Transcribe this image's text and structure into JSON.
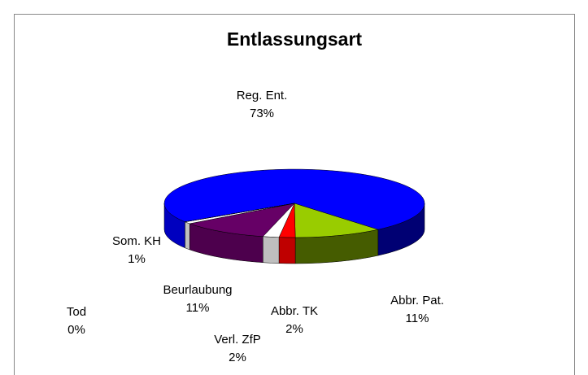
{
  "chart_data": {
    "type": "pie3d",
    "title": "Entlassungsart",
    "categories": [
      "Reg. Ent.",
      "Abbr. Pat.",
      "Abbr. TK",
      "Verl. ZfP",
      "Beurlaubung",
      "Som. KH",
      "Tod"
    ],
    "values": [
      73,
      11,
      2,
      2,
      11,
      1,
      0
    ],
    "value_labels": [
      "73%",
      "11%",
      "2%",
      "2%",
      "11%",
      "1%",
      "0%"
    ],
    "colors": [
      "#0000ff",
      "#99cc00",
      "#ff0000",
      "#ffffff",
      "#660066",
      "#ffffff",
      "#ccffff"
    ]
  }
}
